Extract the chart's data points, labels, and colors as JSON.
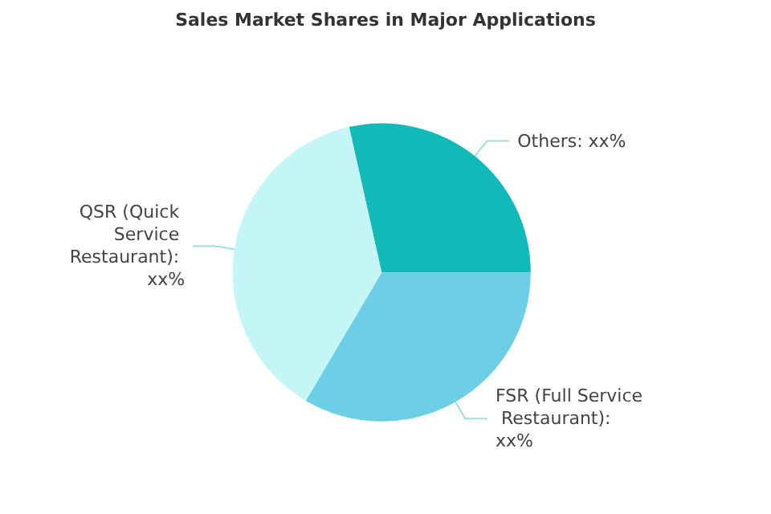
{
  "chart_data": {
    "type": "pie",
    "title": "Sales Market Shares in Major Applications",
    "categories": [
      "Others: xx%",
      "FSR (Full Service Restaurant): xx%",
      "QSR (Quick Service Restaurant): xx%"
    ],
    "values": [
      28.5,
      33.5,
      38
    ],
    "colors": [
      "#12b9b9",
      "#6dcfe6",
      "#c4f6f7"
    ]
  }
}
